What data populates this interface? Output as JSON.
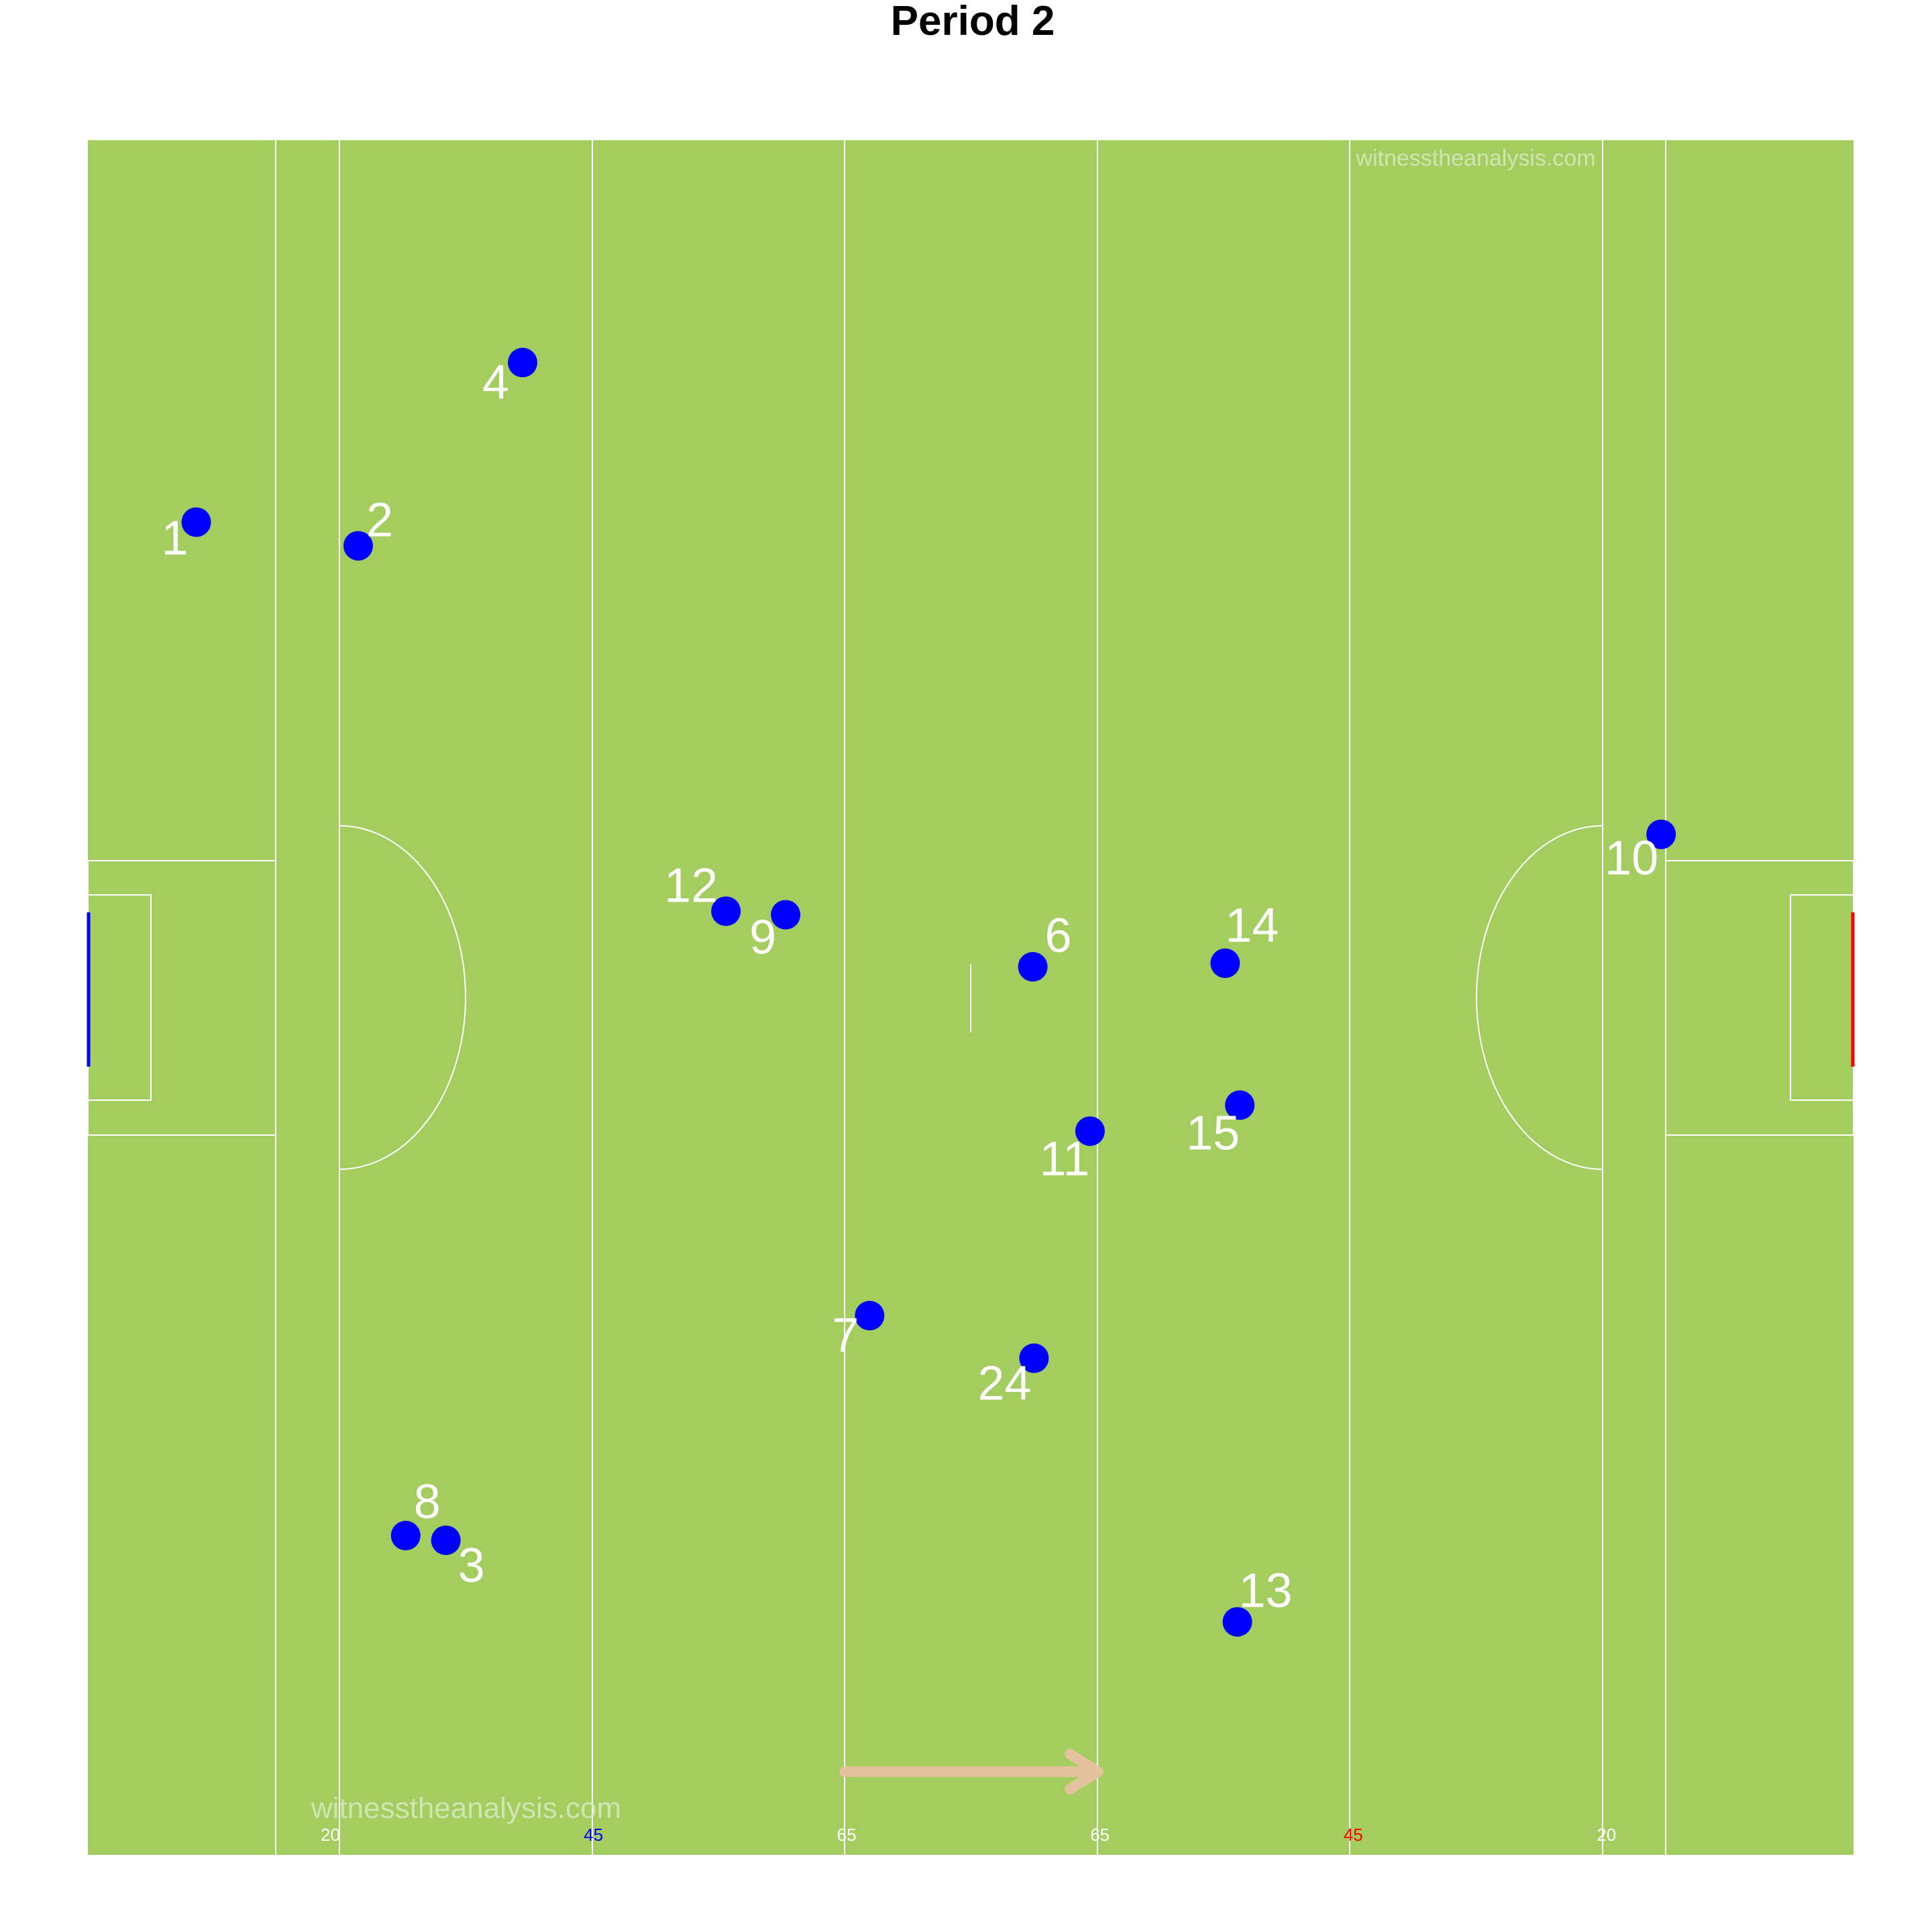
{
  "chart_data": {
    "type": "scatter",
    "title": "Period 2",
    "watermark": "witnesstheanalysis.com",
    "pitch_color": "#a3cd5f",
    "line_color": "#ffffff",
    "point_color": "#0000ff",
    "label_color": "#ffffff",
    "direction_arrow_color": "#e3c29d",
    "left_goal_color": "#0000ff",
    "right_goal_color": "#ff0000",
    "xlim": [
      0,
      145
    ],
    "ylim": [
      0,
      145
    ],
    "x_ticks": [
      {
        "value": 20,
        "label": "20",
        "color": "#ffffff"
      },
      {
        "value": 41.6,
        "label": "45",
        "color": "#0000ff"
      },
      {
        "value": 62.4,
        "label": "65",
        "color": "#ffffff"
      },
      {
        "value": 83.2,
        "label": "65",
        "color": "#ffffff"
      },
      {
        "value": 104,
        "label": "45",
        "color": "#ff0000"
      },
      {
        "value": 124.8,
        "label": "20",
        "color": "#ffffff"
      }
    ],
    "points": [
      {
        "player": "1",
        "x": 8.9,
        "y": 112.7
      },
      {
        "player": "2",
        "x": 22.2,
        "y": 110.7
      },
      {
        "player": "4",
        "x": 35.7,
        "y": 126.2
      },
      {
        "player": "12",
        "x": 52.4,
        "y": 79.8
      },
      {
        "player": "9",
        "x": 57.3,
        "y": 79.5
      },
      {
        "player": "6",
        "x": 77.6,
        "y": 75.1
      },
      {
        "player": "14",
        "x": 93.4,
        "y": 75.4
      },
      {
        "player": "15",
        "x": 94.6,
        "y": 63.4
      },
      {
        "player": "11",
        "x": 82.3,
        "y": 61.2
      },
      {
        "player": "10",
        "x": 129.2,
        "y": 86.3
      },
      {
        "player": "7",
        "x": 64.2,
        "y": 45.6
      },
      {
        "player": "24",
        "x": 77.7,
        "y": 42.0
      },
      {
        "player": "8",
        "x": 26.1,
        "y": 27.0
      },
      {
        "player": "3",
        "x": 29.4,
        "y": 26.6
      },
      {
        "player": "13",
        "x": 94.4,
        "y": 19.7
      }
    ]
  }
}
